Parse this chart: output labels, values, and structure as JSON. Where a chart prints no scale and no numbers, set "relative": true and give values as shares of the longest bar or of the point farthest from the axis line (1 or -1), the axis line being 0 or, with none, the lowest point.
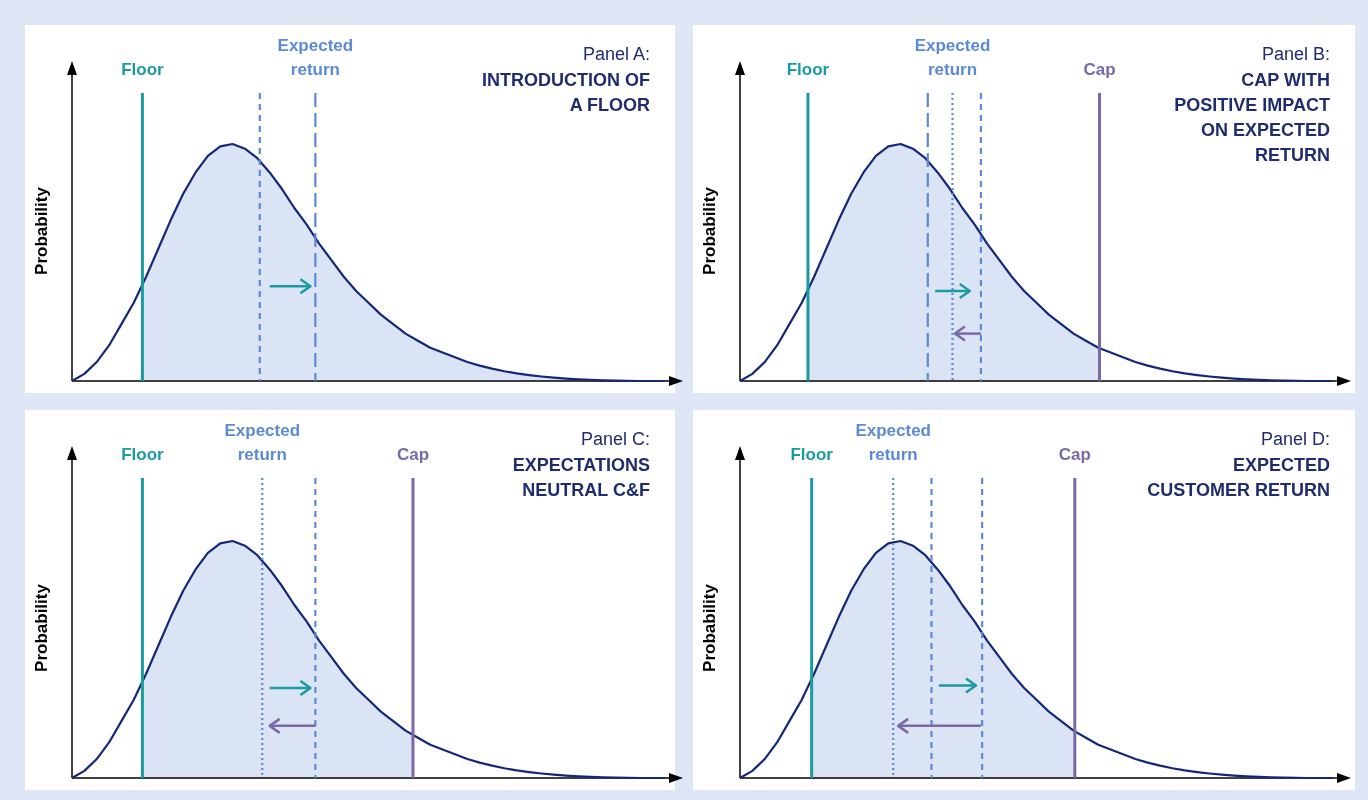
{
  "chart_data": [
    {
      "type": "line",
      "title": "Panel A:",
      "subtitle": "INTRODUCTION OF A FLOOR",
      "ylabel": "Probability",
      "relative": true,
      "annotations": [
        "Floor",
        "Expected return"
      ],
      "categories": [
        null,
        null,
        null,
        null,
        null,
        null,
        null,
        null,
        null,
        null,
        null,
        null,
        null,
        null,
        null,
        null,
        null,
        null,
        null,
        null,
        null,
        null,
        null,
        null,
        null,
        null,
        null,
        null,
        null,
        null,
        null,
        null,
        null,
        null,
        null,
        null,
        null,
        null,
        null,
        null,
        null,
        null,
        null,
        null,
        null,
        null,
        null,
        null,
        null
      ],
      "series": [
        {
          "color": "#14287a",
          "values": [
            0,
            0.03,
            0.08,
            0.15,
            0.24,
            0.33,
            0.44,
            0.56,
            0.68,
            0.79,
            0.88,
            0.95,
            0.99,
            1,
            0.98,
            0.94,
            0.88,
            0.81,
            0.73,
            0.66,
            0.58,
            0.51,
            0.44,
            0.38,
            0.33,
            0.28,
            0.24,
            0.2,
            0.17,
            0.14,
            0.12,
            0.1,
            0.08,
            0.065,
            0.052,
            0.041,
            0.032,
            0.025,
            0.019,
            0.014,
            0.01,
            0.007,
            0.005,
            0.003,
            0.002,
            0.001,
            0,
            0,
            0
          ]
        }
      ]
    },
    {
      "type": "line",
      "title": "Panel B:",
      "subtitle": "CAP WITH POSITIVE IMPACT ON EXPECTED RETURN",
      "ylabel": "Probability",
      "relative": true,
      "annotations": [
        "Floor",
        "Expected return",
        "Cap"
      ],
      "categories": [
        null,
        null,
        null,
        null,
        null,
        null,
        null,
        null,
        null,
        null,
        null,
        null,
        null,
        null,
        null,
        null,
        null,
        null,
        null,
        null,
        null,
        null,
        null,
        null,
        null,
        null,
        null,
        null,
        null,
        null,
        null,
        null,
        null,
        null,
        null,
        null,
        null,
        null,
        null,
        null,
        null,
        null,
        null,
        null,
        null,
        null,
        null,
        null,
        null
      ],
      "series": [
        {
          "color": "#14287a",
          "values": [
            0,
            0.03,
            0.08,
            0.15,
            0.24,
            0.33,
            0.44,
            0.56,
            0.68,
            0.79,
            0.88,
            0.95,
            0.99,
            1,
            0.98,
            0.94,
            0.88,
            0.81,
            0.73,
            0.66,
            0.58,
            0.51,
            0.44,
            0.38,
            0.33,
            0.28,
            0.24,
            0.2,
            0.17,
            0.14,
            0.12,
            0.1,
            0.08,
            0.065,
            0.052,
            0.041,
            0.032,
            0.025,
            0.019,
            0.014,
            0.01,
            0.007,
            0.005,
            0.003,
            0.002,
            0.001,
            0,
            0,
            0
          ]
        }
      ]
    },
    {
      "type": "line",
      "title": "Panel C:",
      "subtitle": "EXPECTATIONS NEUTRAL C&F",
      "ylabel": "Probability",
      "relative": true,
      "annotations": [
        "Floor",
        "Expected return",
        "Cap"
      ],
      "categories": [
        null,
        null,
        null,
        null,
        null,
        null,
        null,
        null,
        null,
        null,
        null,
        null,
        null,
        null,
        null,
        null,
        null,
        null,
        null,
        null,
        null,
        null,
        null,
        null,
        null,
        null,
        null,
        null,
        null,
        null,
        null,
        null,
        null,
        null,
        null,
        null,
        null,
        null,
        null,
        null,
        null,
        null,
        null,
        null,
        null,
        null,
        null,
        null,
        null
      ],
      "series": [
        {
          "color": "#14287a",
          "values": [
            0,
            0.03,
            0.08,
            0.15,
            0.24,
            0.33,
            0.44,
            0.56,
            0.68,
            0.79,
            0.88,
            0.95,
            0.99,
            1,
            0.98,
            0.94,
            0.88,
            0.81,
            0.73,
            0.66,
            0.58,
            0.51,
            0.44,
            0.38,
            0.33,
            0.28,
            0.24,
            0.2,
            0.17,
            0.14,
            0.12,
            0.1,
            0.08,
            0.065,
            0.052,
            0.041,
            0.032,
            0.025,
            0.019,
            0.014,
            0.01,
            0.007,
            0.005,
            0.003,
            0.002,
            0.001,
            0,
            0,
            0
          ]
        }
      ]
    },
    {
      "type": "line",
      "title": "Panel D:",
      "subtitle": "EXPECTED CUSTOMER RETURN",
      "ylabel": "Probability",
      "relative": true,
      "annotations": [
        "Floor",
        "Expected return",
        "Cap"
      ],
      "categories": [
        null,
        null,
        null,
        null,
        null,
        null,
        null,
        null,
        null,
        null,
        null,
        null,
        null,
        null,
        null,
        null,
        null,
        null,
        null,
        null,
        null,
        null,
        null,
        null,
        null,
        null,
        null,
        null,
        null,
        null,
        null,
        null,
        null,
        null,
        null,
        null,
        null,
        null,
        null,
        null,
        null,
        null,
        null,
        null,
        null,
        null,
        null,
        null,
        null
      ],
      "series": [
        {
          "color": "#14287a",
          "values": [
            0,
            0.03,
            0.08,
            0.15,
            0.24,
            0.33,
            0.44,
            0.56,
            0.68,
            0.79,
            0.88,
            0.95,
            0.99,
            1,
            0.98,
            0.94,
            0.88,
            0.81,
            0.73,
            0.66,
            0.58,
            0.51,
            0.44,
            0.38,
            0.33,
            0.28,
            0.24,
            0.2,
            0.17,
            0.14,
            0.12,
            0.1,
            0.08,
            0.065,
            0.052,
            0.041,
            0.032,
            0.025,
            0.019,
            0.014,
            0.01,
            0.007,
            0.005,
            0.003,
            0.002,
            0.001,
            0,
            0,
            0
          ]
        }
      ]
    }
  ]
}
